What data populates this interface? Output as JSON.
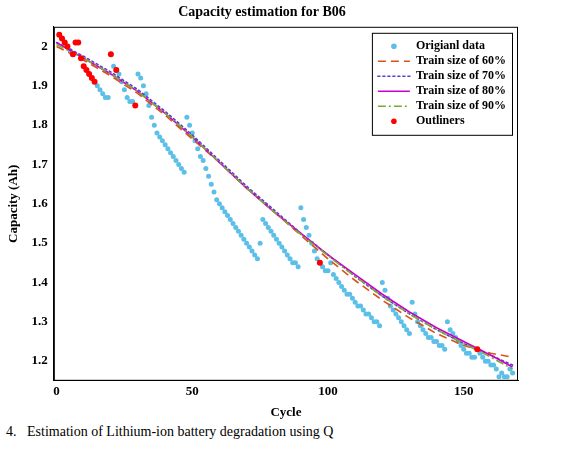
{
  "chart_data": {
    "type": "scatter",
    "title": "Capacity estimation for B06",
    "caption": "4.   Estimation of Lithium-ion battery degradation using Q",
    "x_label": "Cycle",
    "y_label": "Capacity (Ah)",
    "xlim": [
      -1,
      170
    ],
    "xticks": [
      0,
      50,
      100,
      150
    ],
    "ylim": [
      1.15,
      2.05
    ],
    "yticks": [
      1.2,
      1.3,
      1.4,
      1.5,
      1.6,
      1.7,
      1.8,
      1.9,
      2
    ],
    "grid": false,
    "legend": "upper right",
    "series": [
      {
        "name": "Origianl data",
        "color": "#5bbfe8",
        "marker": "circle",
        "line_style": "none",
        "x": [
          1,
          2,
          3,
          4,
          5,
          6,
          7,
          8,
          9,
          10,
          11,
          12,
          13,
          14,
          15,
          16,
          17,
          18,
          19,
          20,
          21,
          22,
          23,
          24,
          25,
          26,
          27,
          28,
          29,
          30,
          31,
          32,
          33,
          34,
          35,
          36,
          37,
          38,
          39,
          40,
          41,
          42,
          43,
          44,
          45,
          46,
          47,
          48,
          49,
          50,
          51,
          52,
          53,
          54,
          55,
          56,
          57,
          58,
          59,
          60,
          61,
          62,
          63,
          64,
          65,
          66,
          67,
          68,
          69,
          70,
          71,
          72,
          73,
          74,
          75,
          76,
          77,
          78,
          79,
          80,
          81,
          82,
          83,
          84,
          85,
          86,
          87,
          88,
          89,
          90,
          91,
          92,
          93,
          94,
          95,
          96,
          97,
          98,
          99,
          100,
          101,
          102,
          103,
          104,
          105,
          106,
          107,
          108,
          109,
          110,
          111,
          112,
          113,
          114,
          115,
          116,
          117,
          118,
          119,
          120,
          121,
          122,
          123,
          124,
          125,
          126,
          127,
          128,
          129,
          130,
          131,
          132,
          133,
          134,
          135,
          136,
          137,
          138,
          139,
          140,
          141,
          142,
          143,
          144,
          145,
          146,
          147,
          148,
          149,
          150,
          151,
          152,
          153,
          154,
          155,
          156,
          157,
          158,
          159,
          160,
          161,
          162,
          163,
          164,
          165,
          166,
          167,
          168
        ],
        "values": [
          2.03,
          2.02,
          2.01,
          2.0,
          1.99,
          1.98,
          2.01,
          2.01,
          1.97,
          1.95,
          1.94,
          1.93,
          1.92,
          1.91,
          1.9,
          1.89,
          1.88,
          1.87,
          1.87,
          1.98,
          1.95,
          1.94,
          1.93,
          1.91,
          1.89,
          1.87,
          1.86,
          1.86,
          1.85,
          1.93,
          1.92,
          1.9,
          1.88,
          1.85,
          1.82,
          1.8,
          1.78,
          1.77,
          1.76,
          1.75,
          1.74,
          1.73,
          1.72,
          1.71,
          1.7,
          1.69,
          1.68,
          1.82,
          1.8,
          1.78,
          1.76,
          1.74,
          1.72,
          1.71,
          1.69,
          1.67,
          1.65,
          1.63,
          1.61,
          1.6,
          1.59,
          1.58,
          1.57,
          1.56,
          1.55,
          1.54,
          1.53,
          1.52,
          1.51,
          1.5,
          1.49,
          1.48,
          1.47,
          1.46,
          1.5,
          1.56,
          1.55,
          1.54,
          1.53,
          1.52,
          1.51,
          1.5,
          1.49,
          1.48,
          1.47,
          1.46,
          1.45,
          1.45,
          1.44,
          1.59,
          1.56,
          1.54,
          1.52,
          1.5,
          1.48,
          1.46,
          1.45,
          1.44,
          1.43,
          1.43,
          1.45,
          1.42,
          1.41,
          1.4,
          1.39,
          1.38,
          1.37,
          1.37,
          1.36,
          1.35,
          1.34,
          1.34,
          1.33,
          1.32,
          1.32,
          1.31,
          1.3,
          1.3,
          1.29,
          1.4,
          1.38,
          1.36,
          1.34,
          1.33,
          1.32,
          1.31,
          1.3,
          1.29,
          1.28,
          1.27,
          1.35,
          1.32,
          1.3,
          1.29,
          1.28,
          1.27,
          1.26,
          1.26,
          1.25,
          1.25,
          1.24,
          1.24,
          1.23,
          1.3,
          1.28,
          1.27,
          1.26,
          1.25,
          1.24,
          1.23,
          1.22,
          1.22,
          1.21,
          1.21,
          1.23,
          1.22,
          1.21,
          1.2,
          1.2,
          1.19,
          1.19,
          1.18,
          1.16,
          1.17,
          1.16,
          1.16,
          1.18,
          1.17
        ]
      },
      {
        "name": "Train size of 60%",
        "color": "#d95319",
        "marker": "none",
        "line_style": "dashed",
        "x": [
          0,
          10,
          20,
          30,
          40,
          50,
          60,
          70,
          80,
          90,
          100,
          110,
          120,
          130,
          140,
          150,
          160,
          168
        ],
        "values": [
          2.0,
          1.965,
          1.925,
          1.88,
          1.825,
          1.765,
          1.705,
          1.64,
          1.58,
          1.52,
          1.46,
          1.405,
          1.355,
          1.31,
          1.27,
          1.24,
          1.22,
          1.21
        ]
      },
      {
        "name": "Train size of 70%",
        "color": "#5a3fd0",
        "marker": "none",
        "line_style": "dotted",
        "x": [
          0,
          10,
          20,
          30,
          40,
          50,
          60,
          70,
          80,
          90,
          100,
          110,
          120,
          130,
          140,
          150,
          160,
          168
        ],
        "values": [
          2.01,
          1.975,
          1.935,
          1.89,
          1.835,
          1.775,
          1.71,
          1.645,
          1.585,
          1.525,
          1.47,
          1.415,
          1.365,
          1.32,
          1.28,
          1.245,
          1.215,
          1.19
        ]
      },
      {
        "name": "Train size of 80%",
        "color": "#cc00cc",
        "marker": "none",
        "line_style": "solid",
        "x": [
          0,
          10,
          20,
          30,
          40,
          50,
          60,
          70,
          80,
          90,
          100,
          110,
          120,
          130,
          140,
          150,
          160,
          168
        ],
        "values": [
          2.01,
          1.97,
          1.93,
          1.885,
          1.83,
          1.77,
          1.705,
          1.64,
          1.58,
          1.525,
          1.47,
          1.42,
          1.37,
          1.325,
          1.285,
          1.25,
          1.215,
          1.185
        ]
      },
      {
        "name": "Train size of 90%",
        "color": "#77ac30",
        "marker": "none",
        "line_style": "dashdot",
        "x": [
          0,
          10,
          20,
          30,
          40,
          50,
          60,
          70,
          80,
          90,
          100,
          110,
          120,
          130,
          140,
          150,
          160,
          168
        ],
        "values": [
          2.005,
          1.97,
          1.93,
          1.885,
          1.83,
          1.77,
          1.705,
          1.64,
          1.58,
          1.522,
          1.468,
          1.415,
          1.365,
          1.32,
          1.28,
          1.245,
          1.21,
          1.18
        ]
      },
      {
        "name": "Outliners",
        "color": "#ff0000",
        "marker": "circle",
        "line_style": "none",
        "x": [
          1,
          2,
          3,
          4,
          6,
          7,
          8,
          9,
          10,
          11,
          12,
          13,
          14,
          20,
          22,
          29,
          97,
          155
        ],
        "values": [
          2.03,
          2.02,
          2.01,
          2.0,
          1.98,
          2.01,
          2.01,
          1.97,
          1.95,
          1.94,
          1.93,
          1.92,
          1.91,
          1.98,
          1.94,
          1.85,
          1.45,
          1.23
        ]
      }
    ]
  }
}
